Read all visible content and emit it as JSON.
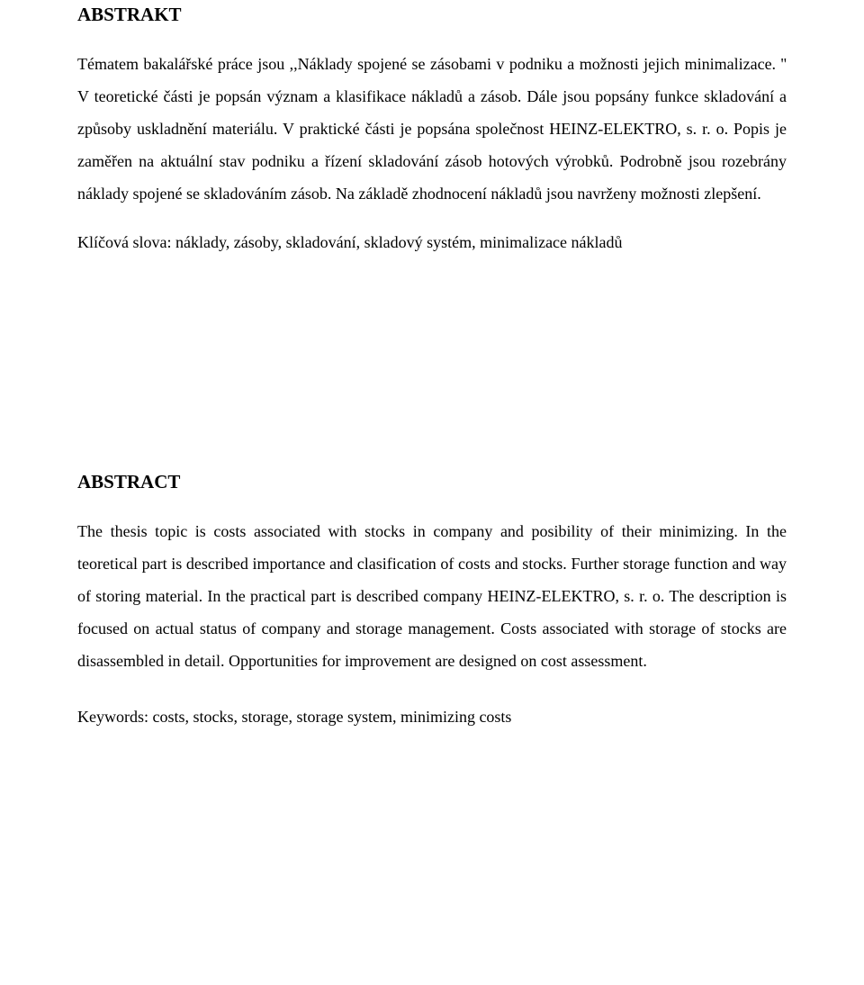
{
  "cz": {
    "heading": "ABSTRAKT",
    "para1": "Tématem bakalářské práce jsou ,,Náklady spojené se zásobami v podniku a možnosti jejich minimalizace. '' V teoretické části je popsán význam a klasifikace nákladů a zásob. Dále jsou popsány funkce skladování a způsoby uskladnění materiálu. V praktické části je popsána společnost HEINZ-ELEKTRO, s. r. o. Popis je zaměřen na aktuální stav podniku a řízení skladování zásob hotových výrobků. Podrobně jsou rozebrány náklady spojené se skladováním zásob. Na základě zhodnocení nákladů jsou navrženy možnosti zlepšení.",
    "keywords": "Klíčová slova: náklady, zásoby, skladování, skladový systém, minimalizace nákladů"
  },
  "en": {
    "heading": "ABSTRACT",
    "para1": "The  thesis topic  is  costs  associated with  stocks  in  company  and  posibility  of  their minimizing. In the teoretical part is described importance and clasification of costs and stocks. Further storage function and way of storing material. In the practical part is described company HEINZ-ELEKTRO, s. r. o. The description is focused on actual  status of  company  and storage management.  Costs  associated  with  storage  of  stocks  are disassembled in detail. Opportunities for improvement are designed on cost assessment.",
    "keywords": "Keywords: costs, stocks, storage, storage system, minimizing costs"
  }
}
